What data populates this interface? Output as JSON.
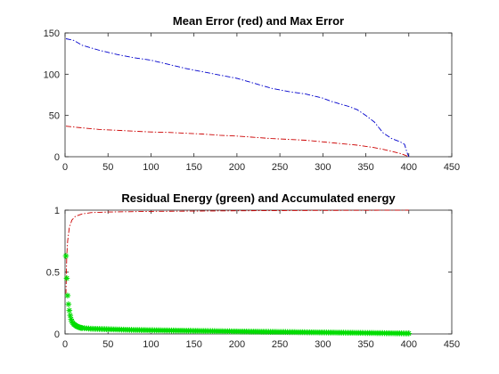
{
  "chart_data": [
    {
      "type": "line",
      "title": "Mean Error (red) and Max Error",
      "xlabel": "",
      "ylabel": "",
      "xlim": [
        0,
        450
      ],
      "ylim": [
        0,
        150
      ],
      "xticks": [
        0,
        50,
        100,
        150,
        200,
        250,
        300,
        350,
        400,
        450
      ],
      "yticks": [
        0,
        50,
        100,
        150
      ],
      "grid": false,
      "series": [
        {
          "color": "#0000cc",
          "style": "dash-dot",
          "x": [
            1,
            10,
            20,
            40,
            60,
            80,
            100,
            120,
            140,
            160,
            180,
            200,
            220,
            240,
            260,
            280,
            300,
            310,
            320,
            330,
            340,
            350,
            360,
            370,
            380,
            390,
            395,
            398,
            400
          ],
          "y": [
            143,
            141,
            135,
            129,
            124,
            120,
            117,
            112,
            107,
            103,
            99,
            95,
            89,
            83,
            79,
            76,
            71,
            67,
            64,
            61,
            57,
            50,
            42,
            29,
            22,
            18,
            15,
            5,
            0
          ]
        },
        {
          "color": "#cc0000",
          "style": "dash-dot",
          "x": [
            1,
            10,
            20,
            40,
            60,
            80,
            100,
            120,
            140,
            160,
            180,
            200,
            220,
            240,
            260,
            280,
            300,
            320,
            340,
            360,
            370,
            380,
            390,
            395,
            400
          ],
          "y": [
            37,
            36,
            35,
            33,
            32,
            31,
            30,
            29.5,
            28.5,
            27.5,
            26,
            25,
            23.5,
            22,
            21,
            20,
            18,
            16,
            14,
            11,
            9,
            6.5,
            4,
            2,
            0
          ]
        }
      ]
    },
    {
      "type": "line",
      "title": "Residual Energy (green) and Accumulated energy",
      "xlabel": "",
      "ylabel": "",
      "xlim": [
        0,
        450
      ],
      "ylim": [
        0,
        1
      ],
      "xticks": [
        0,
        50,
        100,
        150,
        200,
        250,
        300,
        350,
        400,
        450
      ],
      "yticks": [
        0,
        0.5,
        1
      ],
      "grid": false,
      "series": [
        {
          "color": "#cc0000",
          "style": "dash-dot",
          "x": [
            1,
            2,
            3,
            5,
            8,
            12,
            20,
            30,
            50,
            100,
            200,
            300,
            400
          ],
          "y": [
            0.32,
            0.63,
            0.75,
            0.86,
            0.92,
            0.95,
            0.97,
            0.98,
            0.985,
            0.99,
            0.995,
            0.998,
            1.0
          ]
        },
        {
          "color": "#00dd00",
          "style": "star-markers",
          "x": [
            1,
            2,
            3,
            4,
            5,
            6,
            7,
            8,
            9,
            10,
            12,
            14,
            16,
            18,
            20,
            25,
            30,
            40,
            50,
            75,
            100,
            150,
            200,
            250,
            300,
            350,
            400
          ],
          "y": [
            0.63,
            0.45,
            0.31,
            0.24,
            0.19,
            0.15,
            0.12,
            0.1,
            0.09,
            0.08,
            0.07,
            0.06,
            0.055,
            0.05,
            0.048,
            0.045,
            0.042,
            0.04,
            0.038,
            0.033,
            0.03,
            0.025,
            0.02,
            0.016,
            0.012,
            0.008,
            0.004
          ]
        }
      ]
    }
  ]
}
